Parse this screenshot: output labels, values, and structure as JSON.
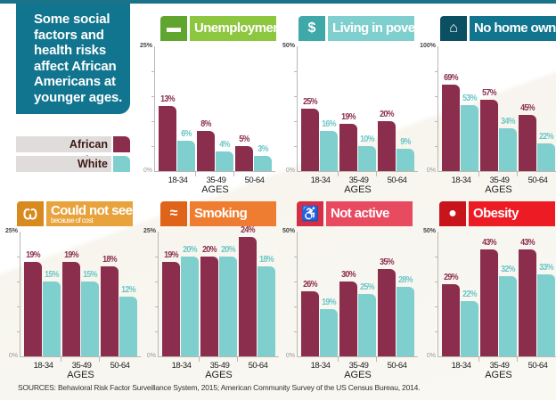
{
  "title": "Some social factors and health risks affect African Americans at younger ages.",
  "legend": [
    {
      "label": "African American",
      "color": "#8b2e4d"
    },
    {
      "label": "White",
      "color": "#7fcfcf"
    }
  ],
  "source": "SOURCES: Behavioral Risk Factor Surveillance System, 2015; American Community Survey of the US Census Bureau, 2014.",
  "chart_data": [
    {
      "type": "bar",
      "title": "Unemployment",
      "icon": "briefcase-icon",
      "header_color": "#8dc63f",
      "icon_color": "#5fa52e",
      "categories": [
        "18-34",
        "35-49",
        "50-64"
      ],
      "xlabel": "AGES",
      "ylim": [
        0,
        25
      ],
      "ytick_labels": [
        "25%",
        "0%"
      ],
      "series": [
        {
          "name": "African American",
          "values": [
            13,
            8,
            5
          ]
        },
        {
          "name": "White",
          "values": [
            6,
            4,
            3
          ]
        }
      ]
    },
    {
      "type": "bar",
      "title": "Living in poverty",
      "icon": "dollar-icon",
      "header_color": "#80cfcf",
      "icon_color": "#3fa8a8",
      "categories": [
        "18-34",
        "35-49",
        "50-64"
      ],
      "xlabel": "AGES",
      "ylim": [
        0,
        50
      ],
      "ytick_labels": [
        "50%",
        "0%"
      ],
      "series": [
        {
          "name": "African American",
          "values": [
            25,
            19,
            20
          ]
        },
        {
          "name": "White",
          "values": [
            16,
            10,
            9
          ]
        }
      ]
    },
    {
      "type": "bar",
      "title": "No home ownership",
      "icon": "house-icon",
      "header_color": "#11758f",
      "icon_color": "#0b4f63",
      "categories": [
        "18-34",
        "35-49",
        "50-64"
      ],
      "xlabel": "AGES",
      "ylim": [
        0,
        100
      ],
      "ytick_labels": [
        "100%",
        "0%"
      ],
      "series": [
        {
          "name": "African American",
          "values": [
            69,
            57,
            45
          ]
        },
        {
          "name": "White",
          "values": [
            53,
            34,
            22
          ]
        }
      ]
    },
    {
      "type": "bar",
      "title": "Could not see an MD",
      "subtitle": "because of cost",
      "icon": "stethoscope-icon",
      "header_color": "#e8a33d",
      "icon_color": "#d88a1e",
      "categories": [
        "18-34",
        "35-49",
        "50-64"
      ],
      "xlabel": "AGES",
      "ylim": [
        0,
        25
      ],
      "ytick_labels": [
        "25%",
        "0%"
      ],
      "series": [
        {
          "name": "African American",
          "values": [
            19,
            19,
            18
          ]
        },
        {
          "name": "White",
          "values": [
            15,
            15,
            12
          ]
        }
      ]
    },
    {
      "type": "bar",
      "title": "Smoking",
      "icon": "cigarette-icon",
      "header_color": "#ef7d31",
      "icon_color": "#e0631a",
      "categories": [
        "18-34",
        "35-49",
        "50-64"
      ],
      "xlabel": "AGES",
      "ylim": [
        0,
        25
      ],
      "ytick_labels": [
        "25%",
        "0%"
      ],
      "series": [
        {
          "name": "African American",
          "values": [
            19,
            20,
            24
          ]
        },
        {
          "name": "White",
          "values": [
            20,
            20,
            18
          ]
        }
      ]
    },
    {
      "type": "bar",
      "title": "Not active",
      "icon": "recliner-icon",
      "header_color": "#e84a5f",
      "icon_color": "#d42f45",
      "categories": [
        "18-34",
        "35-49",
        "50-64"
      ],
      "xlabel": "AGES",
      "ylim": [
        0,
        50
      ],
      "ytick_labels": [
        "50%",
        "0%"
      ],
      "series": [
        {
          "name": "African American",
          "values": [
            26,
            30,
            35
          ]
        },
        {
          "name": "White",
          "values": [
            19,
            25,
            28
          ]
        }
      ]
    },
    {
      "type": "bar",
      "title": "Obesity",
      "icon": "obese-person-icon",
      "header_color": "#ed1c24",
      "icon_color": "#c8141b",
      "categories": [
        "18-34",
        "35-49",
        "50-64"
      ],
      "xlabel": "AGES",
      "ylim": [
        0,
        50
      ],
      "ytick_labels": [
        "50%",
        "0%"
      ],
      "series": [
        {
          "name": "African American",
          "values": [
            29,
            43,
            43
          ]
        },
        {
          "name": "White",
          "values": [
            22,
            32,
            33
          ]
        }
      ]
    }
  ]
}
